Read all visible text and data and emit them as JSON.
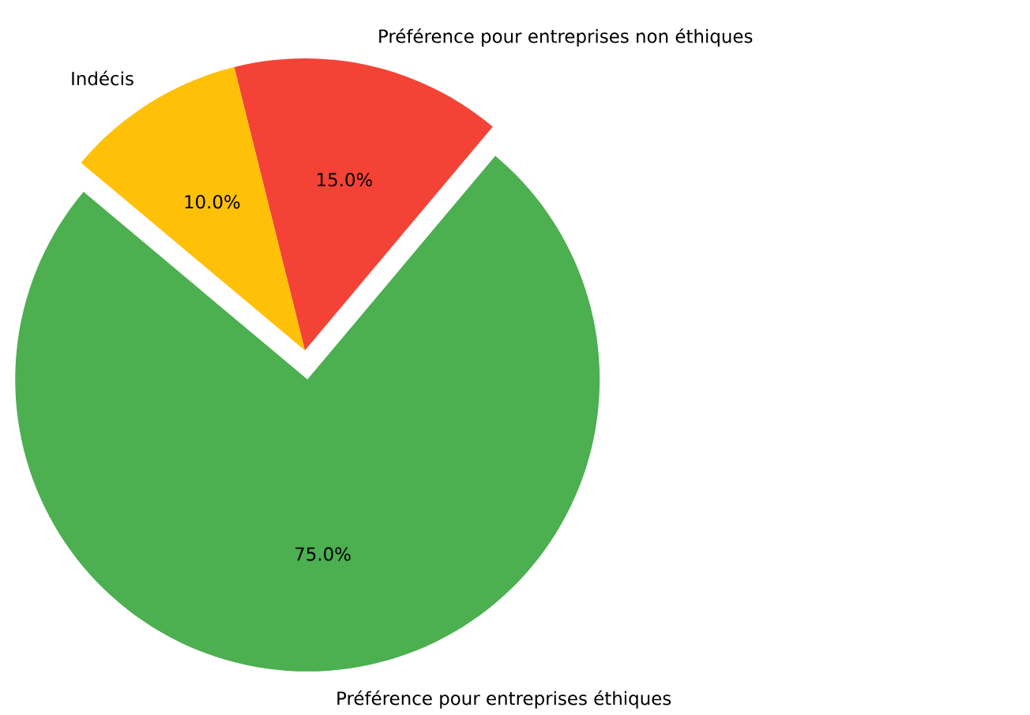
{
  "chart_data": {
    "type": "pie",
    "categories": [
      "Préférence pour entreprises éthiques",
      "Préférence pour entreprises non éthiques",
      "Indécis"
    ],
    "values": [
      75,
      15,
      10
    ],
    "colors": [
      "#4caf50",
      "#f44336",
      "#ffc107"
    ],
    "value_labels": [
      "75.0%",
      "15.0%",
      "10.0%"
    ]
  }
}
